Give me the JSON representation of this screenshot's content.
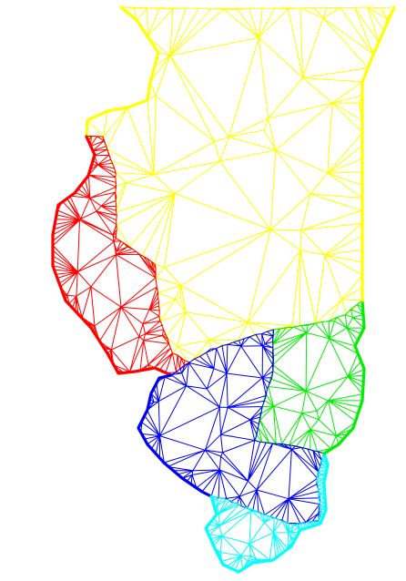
{
  "figure": {
    "description_visible_text": "",
    "background": "#ffffff"
  },
  "partitions": [
    {
      "id": "north",
      "color": "#ffff00"
    },
    {
      "id": "west",
      "color": "#ff0000"
    },
    {
      "id": "east",
      "color": "#00ee00"
    },
    {
      "id": "south-central",
      "color": "#0000ee"
    },
    {
      "id": "south-tip",
      "color": "#00ffff"
    }
  ]
}
